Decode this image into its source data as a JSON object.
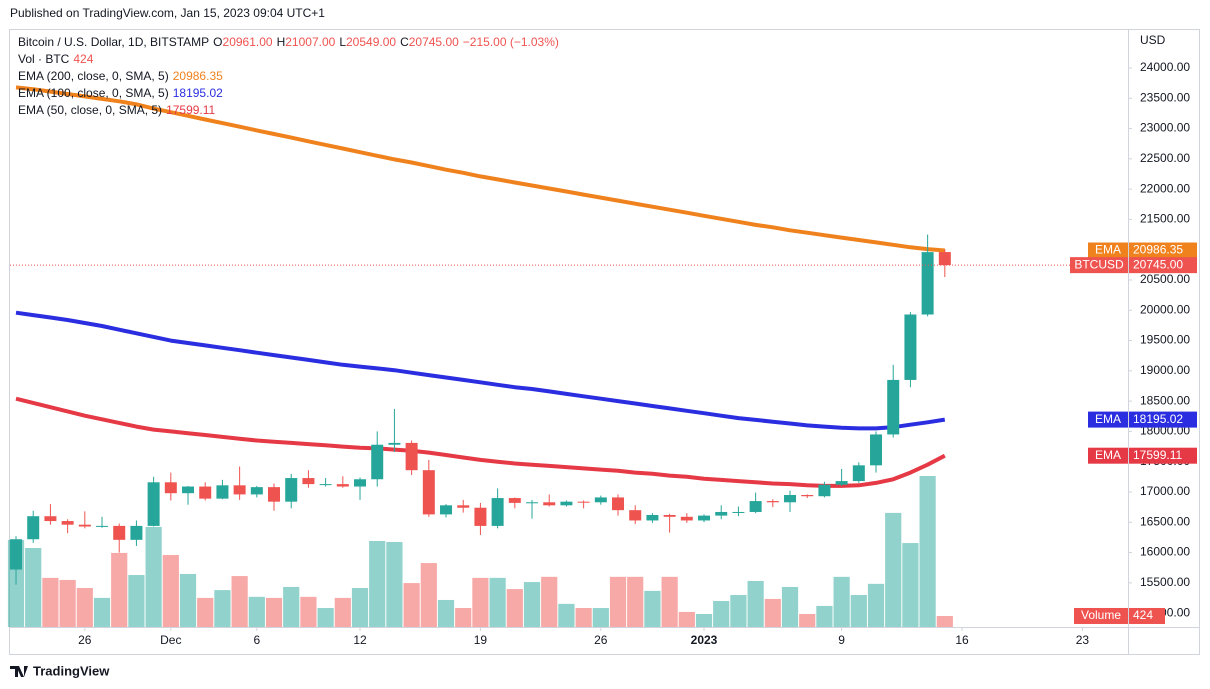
{
  "header": {
    "published": "Published on TradingView.com, Jan 15, 2023 09:04 UTC+1"
  },
  "footer": {
    "brand": "TradingView"
  },
  "chart_data": {
    "type": "candlestick",
    "symbol": "Bitcoin / U.S. Dollar, 1D, BITSTAMP",
    "ohlc_legend": [
      {
        "key": "O",
        "text": "20961.00"
      },
      {
        "key": "H",
        "text": "21007.00"
      },
      {
        "key": "L",
        "text": "20549.00"
      },
      {
        "key": "C",
        "text": "20745.00"
      }
    ],
    "change": "−215.00 (−1.03%)",
    "unit": "USD",
    "up_color": "#26a69a",
    "down_color": "#ef5350",
    "x": [
      0,
      1,
      2,
      3,
      4,
      5,
      6,
      7,
      8,
      9,
      10,
      11,
      12,
      13,
      14,
      15,
      16,
      17,
      18,
      19,
      20,
      21,
      22,
      23,
      24,
      25,
      26,
      27,
      28,
      29,
      30,
      31,
      32,
      33,
      34,
      35,
      36,
      37,
      38,
      39,
      40,
      41,
      42,
      43,
      44,
      45,
      46,
      47,
      48,
      49,
      50,
      51,
      52,
      53,
      54
    ],
    "xlim": [
      -0.35,
      64.65
    ],
    "xticks": [
      {
        "value": 4,
        "label": "26"
      },
      {
        "value": 9,
        "label": "Dec"
      },
      {
        "value": 14,
        "label": "6"
      },
      {
        "value": 20,
        "label": "12"
      },
      {
        "value": 27,
        "label": "19"
      },
      {
        "value": 34,
        "label": "26"
      },
      {
        "value": 40,
        "label": "2023"
      },
      {
        "value": 48,
        "label": "9"
      },
      {
        "value": 55,
        "label": "16"
      },
      {
        "value": 62,
        "label": "23"
      }
    ],
    "ylim": [
      14771,
      24627
    ],
    "yticks": [
      {
        "value": 15000,
        "label": "15000.00"
      },
      {
        "value": 15500,
        "label": "15500.00"
      },
      {
        "value": 16000,
        "label": "16000.00"
      },
      {
        "value": 16500,
        "label": "16500.00"
      },
      {
        "value": 17000,
        "label": "17000.00"
      },
      {
        "value": 17500,
        "label": "17500.00"
      },
      {
        "value": 18000,
        "label": "18000.00"
      },
      {
        "value": 18500,
        "label": "18500.00"
      },
      {
        "value": 19000,
        "label": "19000.00"
      },
      {
        "value": 19500,
        "label": "19500.00"
      },
      {
        "value": 20000,
        "label": "20000.00"
      },
      {
        "value": 20500,
        "label": "20500.00"
      },
      {
        "value": 21000,
        "label": "21000.00"
      },
      {
        "value": 21500,
        "label": "21500.00"
      },
      {
        "value": 22000,
        "label": "22000.00"
      },
      {
        "value": 22500,
        "label": "22500.00"
      },
      {
        "value": 23000,
        "label": "23000.00"
      },
      {
        "value": 23500,
        "label": "23500.00"
      },
      {
        "value": 24000,
        "label": "24000.00"
      }
    ],
    "open": [
      15720,
      16220,
      16600,
      16520,
      16460,
      16430,
      16440,
      16210,
      16440,
      17160,
      16980,
      17090,
      16890,
      17110,
      16960,
      17080,
      16840,
      17230,
      17130,
      17130,
      17090,
      17210,
      17780,
      17810,
      17360,
      16630,
      16780,
      16740,
      16440,
      16900,
      16820,
      16830,
      16780,
      16840,
      16830,
      16910,
      16700,
      16530,
      16620,
      16590,
      16530,
      16610,
      16670,
      16670,
      16850,
      16830,
      16950,
      16930,
      17120,
      17180,
      17440,
      17950,
      18850,
      19930,
      20961
    ],
    "high": [
      16270,
      16690,
      16800,
      16550,
      16680,
      16590,
      16480,
      16530,
      17250,
      17320,
      17100,
      17160,
      17200,
      17420,
      17100,
      17140,
      17300,
      17360,
      17230,
      17260,
      17240,
      18000,
      18370,
      17850,
      17530,
      16800,
      16870,
      16820,
      17060,
      16910,
      16870,
      16960,
      16860,
      16860,
      16940,
      16960,
      16780,
      16650,
      16640,
      16650,
      16630,
      16780,
      16760,
      16990,
      16880,
      17020,
      16960,
      17170,
      17380,
      17490,
      18000,
      19100,
      19970,
      21250,
      21007
    ],
    "low": [
      15470,
      16160,
      16460,
      16320,
      16400,
      16410,
      16000,
      16110,
      16430,
      16860,
      16790,
      16860,
      16880,
      16870,
      16910,
      16690,
      16730,
      17070,
      17090,
      17070,
      16870,
      17090,
      17660,
      17280,
      16590,
      16580,
      16660,
      16290,
      16400,
      16730,
      16560,
      16760,
      16760,
      16730,
      16790,
      16610,
      16470,
      16490,
      16330,
      16490,
      16500,
      16550,
      16600,
      16650,
      16750,
      16670,
      16900,
      16910,
      17100,
      17150,
      17320,
      17900,
      18730,
      19900,
      20549
    ],
    "close": [
      16220,
      16600,
      16520,
      16460,
      16430,
      16440,
      16210,
      16440,
      17160,
      16980,
      17090,
      16890,
      17110,
      16960,
      17080,
      16840,
      17230,
      17130,
      17130,
      17090,
      17210,
      17780,
      17810,
      17360,
      16630,
      16780,
      16740,
      16440,
      16900,
      16820,
      16830,
      16780,
      16840,
      16830,
      16910,
      16700,
      16530,
      16620,
      16590,
      16530,
      16610,
      16670,
      16670,
      16850,
      16830,
      16950,
      16930,
      17120,
      17180,
      17440,
      17950,
      18850,
      19930,
      20960,
      20745
    ],
    "price_tag": {
      "name": "BTCUSD",
      "label": "20745.00"
    },
    "volume": {
      "legend": "Vol · BTC",
      "name": "Volume",
      "value_label": "424",
      "values": [
        3350,
        3040,
        1890,
        1810,
        1500,
        1120,
        2850,
        2000,
        3850,
        2770,
        2040,
        1120,
        1420,
        1960,
        1160,
        1120,
        1540,
        1160,
        730,
        1120,
        1500,
        3310,
        3270,
        1690,
        2460,
        1040,
        730,
        1890,
        1890,
        1460,
        1730,
        1930,
        890,
        730,
        730,
        1930,
        1930,
        1390,
        1930,
        580,
        500,
        1000,
        1230,
        1770,
        1080,
        1540,
        500,
        810,
        1930,
        1230,
        1660,
        4390,
        3230,
        5810,
        424
      ]
    },
    "ema": [
      {
        "name": "EMA (200, close, 0, SMA, 5)",
        "tag": "EMA",
        "color": "#f0821e",
        "value_label": "20986.35",
        "values": [
          23680,
          23650,
          23610,
          23570,
          23530,
          23490,
          23450,
          23400,
          23330,
          23270,
          23210,
          23150,
          23090,
          23030,
          22970,
          22910,
          22850,
          22790,
          22730,
          22670,
          22610,
          22550,
          22490,
          22440,
          22380,
          22320,
          22270,
          22210,
          22160,
          22110,
          22060,
          22010,
          21960,
          21910,
          21860,
          21810,
          21760,
          21710,
          21660,
          21610,
          21560,
          21510,
          21460,
          21410,
          21370,
          21320,
          21280,
          21240,
          21200,
          21160,
          21120,
          21080,
          21040,
          21010,
          20986.35
        ]
      },
      {
        "name": "EMA (100, close, 0, SMA, 5)",
        "tag": "EMA",
        "color": "#2a2ee0",
        "value_label": "18195.02",
        "values": [
          19960,
          19920,
          19880,
          19840,
          19790,
          19740,
          19680,
          19620,
          19560,
          19500,
          19460,
          19420,
          19380,
          19340,
          19300,
          19260,
          19220,
          19180,
          19140,
          19100,
          19070,
          19040,
          19010,
          18970,
          18930,
          18890,
          18850,
          18810,
          18770,
          18730,
          18700,
          18660,
          18620,
          18580,
          18540,
          18500,
          18460,
          18420,
          18380,
          18340,
          18300,
          18260,
          18220,
          18190,
          18160,
          18130,
          18100,
          18080,
          18060,
          18050,
          18050,
          18070,
          18110,
          18150,
          18195.02
        ]
      },
      {
        "name": "EMA (50, close, 0, SMA, 5)",
        "tag": "EMA",
        "color": "#e63946",
        "value_label": "17599.11",
        "values": [
          18540,
          18470,
          18400,
          18330,
          18260,
          18200,
          18140,
          18080,
          18030,
          18000,
          17970,
          17940,
          17910,
          17880,
          17850,
          17830,
          17810,
          17790,
          17770,
          17750,
          17730,
          17720,
          17700,
          17680,
          17650,
          17610,
          17570,
          17530,
          17500,
          17470,
          17450,
          17430,
          17410,
          17390,
          17370,
          17350,
          17320,
          17300,
          17270,
          17250,
          17220,
          17200,
          17180,
          17160,
          17140,
          17130,
          17110,
          17100,
          17100,
          17110,
          17150,
          17210,
          17320,
          17450,
          17599.11
        ]
      }
    ]
  }
}
